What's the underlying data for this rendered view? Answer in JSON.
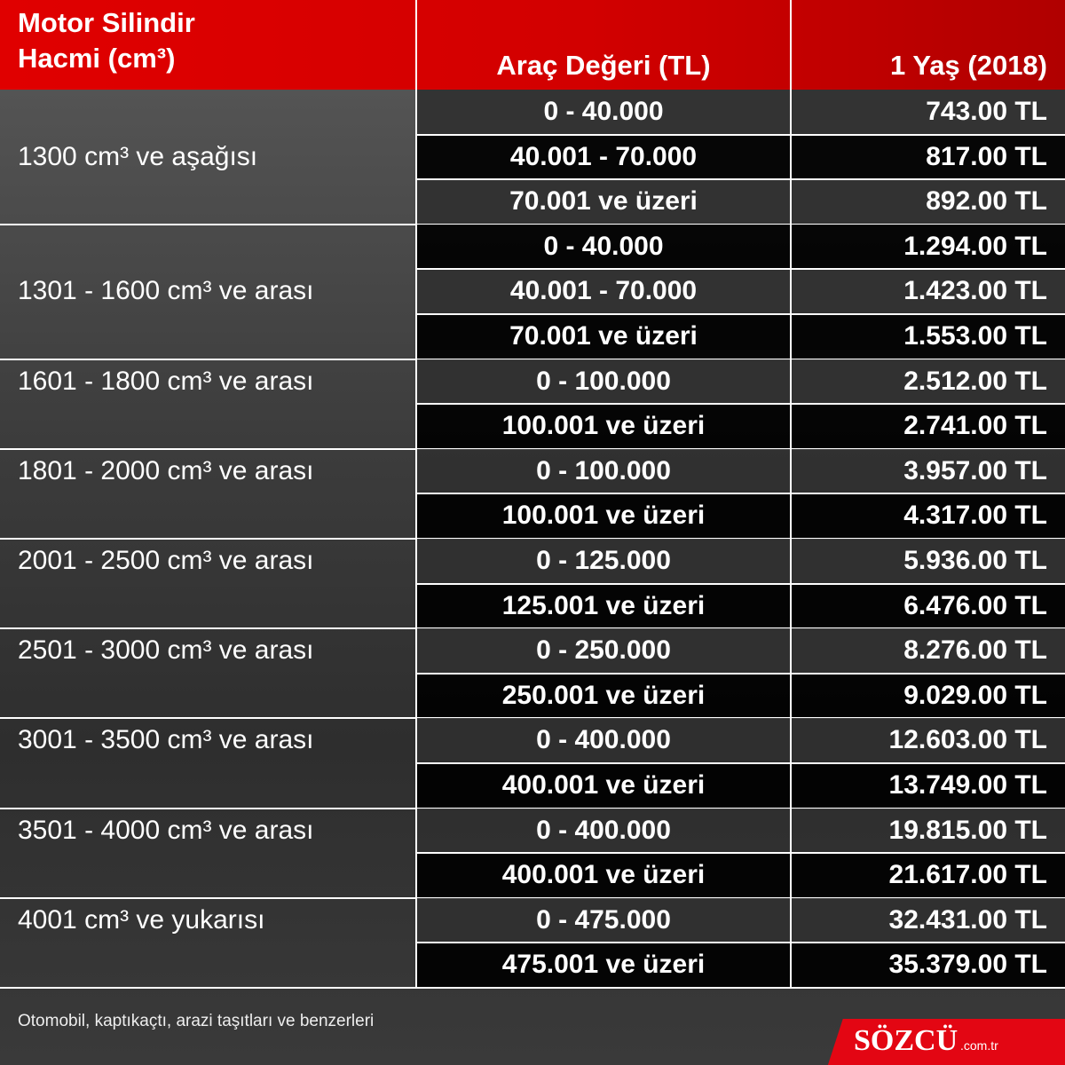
{
  "header": {
    "engine": [
      "Motor Silindir",
      "Hacmi (cm³)"
    ],
    "value": "Araç Değeri (TL)",
    "age": "1 Yaş (2018)"
  },
  "groups": [
    {
      "engine": "1300 cm³ ve aşağısı",
      "rows": [
        [
          "0 - 40.000",
          "743.00 TL"
        ],
        [
          "40.001 - 70.000",
          "817.00 TL"
        ],
        [
          "70.001 ve üzeri",
          "892.00 TL"
        ]
      ]
    },
    {
      "engine": "1301 - 1600 cm³ ve arası",
      "rows": [
        [
          "0 - 40.000",
          "1.294.00 TL"
        ],
        [
          "40.001 - 70.000",
          "1.423.00 TL"
        ],
        [
          "70.001 ve üzeri",
          "1.553.00 TL"
        ]
      ]
    },
    {
      "engine": "1601 - 1800 cm³ ve arası",
      "rows": [
        [
          "0 - 100.000",
          "2.512.00 TL"
        ],
        [
          "100.001 ve üzeri",
          "2.741.00 TL"
        ]
      ]
    },
    {
      "engine": "1801 - 2000 cm³ ve arası",
      "rows": [
        [
          "0 - 100.000",
          "3.957.00 TL"
        ],
        [
          "100.001 ve üzeri",
          "4.317.00 TL"
        ]
      ]
    },
    {
      "engine": "2001 - 2500 cm³ ve arası",
      "rows": [
        [
          "0 - 125.000",
          "5.936.00 TL"
        ],
        [
          "125.001 ve üzeri",
          "6.476.00 TL"
        ]
      ]
    },
    {
      "engine": "2501 - 3000 cm³ ve arası",
      "rows": [
        [
          "0 - 250.000",
          "8.276.00 TL"
        ],
        [
          "250.001 ve üzeri",
          "9.029.00 TL"
        ]
      ]
    },
    {
      "engine": "3001 - 3500 cm³ ve arası",
      "rows": [
        [
          "0 - 400.000",
          "12.603.00 TL"
        ],
        [
          "400.001 ve üzeri",
          "13.749.00 TL"
        ]
      ]
    },
    {
      "engine": "3501 - 4000 cm³ ve arası",
      "rows": [
        [
          "0 - 400.000",
          "19.815.00 TL"
        ],
        [
          "400.001 ve üzeri",
          "21.617.00 TL"
        ]
      ]
    },
    {
      "engine": "4001 cm³ ve yukarısı",
      "rows": [
        [
          "0 - 475.000",
          "32.431.00 TL"
        ],
        [
          "475.001 ve üzeri",
          "35.379.00 TL"
        ]
      ]
    }
  ],
  "footer": {
    "note": "Otomobil, kaptıkaçtı, arazi taşıtları ve benzerleri",
    "logo": "SÖZCÜ",
    "domain": ".com.tr"
  }
}
